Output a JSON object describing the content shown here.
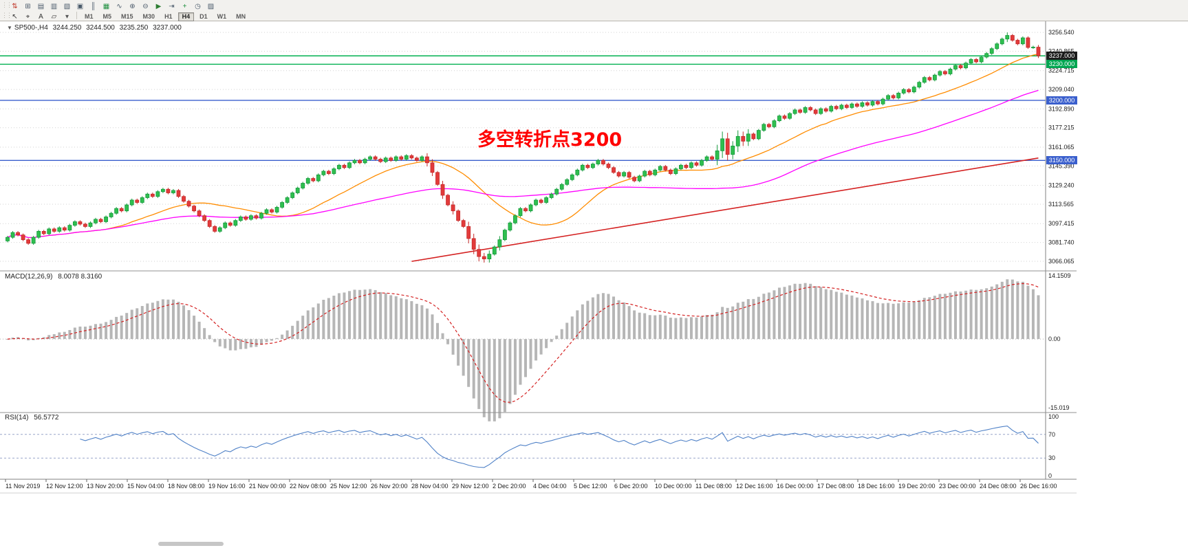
{
  "toolbar": {
    "row1_icons": [
      {
        "name": "new-order-icon",
        "glyph": "⇅",
        "color": "#c0392b"
      },
      {
        "name": "chart-window-icon",
        "glyph": "⊞",
        "color": "#4a5a6a"
      },
      {
        "name": "profiles-icon",
        "glyph": "▤",
        "color": "#4a5a6a"
      },
      {
        "name": "market-watch-icon",
        "glyph": "▥",
        "color": "#4a5a6a"
      },
      {
        "name": "navigator-icon",
        "glyph": "▧",
        "color": "#4a5a6a"
      },
      {
        "name": "terminal-icon",
        "glyph": "▣",
        "color": "#4a5a6a"
      },
      {
        "name": "bar-chart-icon",
        "glyph": "║",
        "color": "#4a5a6a"
      },
      {
        "name": "candlestick-chart-icon",
        "glyph": "▦",
        "color": "#1e8e3e"
      },
      {
        "name": "line-chart-icon",
        "glyph": "∿",
        "color": "#4a5a6a"
      },
      {
        "name": "zoom-in-icon",
        "glyph": "⊕",
        "color": "#4a5a6a"
      },
      {
        "name": "zoom-out-icon",
        "glyph": "⊖",
        "color": "#4a5a6a"
      },
      {
        "name": "auto-scroll-icon",
        "glyph": "▶",
        "color": "#2e7d32"
      },
      {
        "name": "chart-shift-icon",
        "glyph": "⇥",
        "color": "#4a5a6a"
      },
      {
        "name": "indicators-icon",
        "glyph": "+",
        "color": "#1e8e3e"
      },
      {
        "name": "periods-icon",
        "glyph": "◷",
        "color": "#4a5a6a"
      },
      {
        "name": "templates-icon",
        "glyph": "▨",
        "color": "#4a5a6a"
      }
    ],
    "row2_tools": [
      {
        "name": "cursor-icon",
        "glyph": "↖",
        "color": "#333333"
      },
      {
        "name": "crosshair-icon",
        "glyph": "⌖",
        "color": "#333333"
      },
      {
        "name": "text-label-icon",
        "glyph": "A",
        "color": "#333333"
      },
      {
        "name": "shapes-icon",
        "glyph": "▱",
        "color": "#333333"
      },
      {
        "name": "dropdown-arrow-icon",
        "glyph": "▾",
        "color": "#555555"
      }
    ],
    "timeframes": [
      "M1",
      "M5",
      "M15",
      "M30",
      "H1",
      "H4",
      "D1",
      "W1",
      "MN"
    ],
    "active_timeframe": "H4"
  },
  "chart": {
    "symbol_header": {
      "symbol": "SP500-,H4",
      "open": "3244.250",
      "high": "3244.500",
      "low": "3235.250",
      "close": "3237.000"
    },
    "annotation": {
      "text": "多空转折点3200",
      "color": "#ff0000"
    },
    "price_tags": [
      {
        "value": "3237.000",
        "price": 3237.0,
        "bg": "#1c1c1c"
      },
      {
        "value": "3230.000",
        "price": 3230.0,
        "bg": "#00a651"
      },
      {
        "value": "3200.000",
        "price": 3200.0,
        "bg": "#3a5fcd"
      },
      {
        "value": "3150.000",
        "price": 3150.0,
        "bg": "#3a5fcd"
      }
    ]
  },
  "chart_data": {
    "type": "candlestick",
    "symbol": "SP500-",
    "timeframe": "H4",
    "colors": {
      "up": "#149a3c",
      "up_fill": "#2fbf4f",
      "down": "#c62828",
      "down_fill": "#e23b3b"
    },
    "first_open": 3083,
    "closes": [
      3086,
      3090,
      3088,
      3084,
      3081,
      3086,
      3091,
      3089,
      3093,
      3091,
      3094,
      3092,
      3096,
      3099,
      3097,
      3095,
      3098,
      3101,
      3099,
      3103,
      3106,
      3110,
      3108,
      3113,
      3117,
      3115,
      3119,
      3122,
      3120,
      3124,
      3126,
      3123,
      3125,
      3120,
      3116,
      3112,
      3108,
      3104,
      3100,
      3095,
      3091,
      3094,
      3098,
      3096,
      3100,
      3103,
      3101,
      3104,
      3102,
      3106,
      3109,
      3107,
      3111,
      3115,
      3119,
      3123,
      3127,
      3131,
      3135,
      3133,
      3138,
      3141,
      3139,
      3143,
      3146,
      3144,
      3148,
      3150,
      3148,
      3151,
      3153,
      3151,
      3149,
      3152,
      3150,
      3153,
      3151,
      3154,
      3152,
      3150,
      3153,
      3148,
      3140,
      3130,
      3121,
      3113,
      3108,
      3100,
      3095,
      3085,
      3076,
      3070,
      3068,
      3072,
      3078,
      3084,
      3092,
      3098,
      3104,
      3110,
      3108,
      3113,
      3117,
      3115,
      3119,
      3122,
      3126,
      3130,
      3134,
      3138,
      3142,
      3146,
      3144,
      3147,
      3150,
      3147,
      3144,
      3140,
      3137,
      3140,
      3136,
      3133,
      3137,
      3141,
      3138,
      3142,
      3145,
      3142,
      3139,
      3143,
      3146,
      3144,
      3148,
      3146,
      3150,
      3153,
      3151,
      3158,
      3168,
      3155,
      3162,
      3170,
      3166,
      3172,
      3168,
      3175,
      3180,
      3178,
      3183,
      3187,
      3185,
      3189,
      3192,
      3190,
      3194,
      3192,
      3189,
      3193,
      3191,
      3195,
      3193,
      3196,
      3194,
      3197,
      3195,
      3198,
      3196,
      3199,
      3197,
      3201,
      3204,
      3202,
      3206,
      3209,
      3207,
      3211,
      3215,
      3219,
      3217,
      3221,
      3224,
      3222,
      3226,
      3229,
      3227,
      3231,
      3234,
      3232,
      3236,
      3239,
      3243,
      3247,
      3251,
      3254,
      3250,
      3247,
      3252,
      3244,
      3244.25,
      3237
    ],
    "wick_default": 1.2,
    "wick_overrides": {
      "81": 3,
      "82": 3,
      "84": 3,
      "86": 3,
      "89": 4,
      "90": 4,
      "91": 4,
      "92": 3,
      "93": 3,
      "95": 3,
      "137": 5,
      "138": 6,
      "139": 5,
      "140": 4,
      "141": 5,
      "142": 4,
      "143": 4,
      "193": 2.5,
      "199": 1.8
    },
    "price_axis": {
      "min": 3059.2,
      "max": 3264.6,
      "gridline_labels": [
        "3256.540",
        "3240.865",
        "3224.715",
        "3209.040",
        "3192.890",
        "3177.215",
        "3161.065",
        "3145.390",
        "3129.240",
        "3113.565",
        "3097.415",
        "3081.740",
        "3066.065"
      ]
    },
    "hlines": [
      {
        "price": 3237.0,
        "color": "#00b050",
        "width": 1.4
      },
      {
        "price": 3230.0,
        "color": "#00b050",
        "width": 1.4
      },
      {
        "price": 3200.0,
        "color": "#3a5fcd",
        "width": 1.4
      },
      {
        "price": 3150.0,
        "color": "#3a5fcd",
        "width": 1.4
      }
    ],
    "overlays": {
      "ma_fast": {
        "type": "sma",
        "period": 20,
        "color": "#ff8c00"
      },
      "ma_mid": {
        "type": "sma",
        "period": 60,
        "color": "#ff00ff"
      },
      "ma_long": {
        "type": "segment",
        "start_index": 78,
        "start_price": 3066,
        "end_index": 199,
        "end_price": 3152,
        "color": "#d42020"
      }
    },
    "x_labels": [
      "11 Nov 2019",
      "12 Nov 12:00",
      "13 Nov 20:00",
      "15 Nov 04:00",
      "18 Nov 08:00",
      "19 Nov 16:00",
      "21 Nov 00:00",
      "22 Nov 08:00",
      "25 Nov 12:00",
      "26 Nov 20:00",
      "28 Nov 04:00",
      "29 Nov 12:00",
      "2 Dec 20:00",
      "4 Dec 04:00",
      "5 Dec 12:00",
      "6 Dec 20:00",
      "10 Dec 00:00",
      "11 Dec 08:00",
      "12 Dec 16:00",
      "16 Dec 00:00",
      "17 Dec 08:00",
      "18 Dec 16:00",
      "19 Dec 20:00",
      "23 Dec 00:00",
      "24 Dec 08:00",
      "26 Dec 16:00"
    ],
    "indicators": {
      "macd": {
        "label": "MACD(12,26,9)",
        "values": "8.0078 8.3160",
        "fast": 12,
        "slow": 26,
        "signal": 9,
        "scale_max": 14.1509,
        "scale_min": -15.019,
        "scale_labels": [
          "14.1509",
          "0.00",
          "-15.019"
        ],
        "histogram_color": "#b6b6b6",
        "signal_color": "#d42020"
      },
      "rsi": {
        "label": "RSI(14)",
        "value": "56.5772",
        "period": 14,
        "levels": [
          70,
          30
        ],
        "scale_labels": [
          "100",
          "70",
          "30",
          "0"
        ],
        "line_color": "#4f81c7",
        "level_color": "#97a4c9"
      }
    }
  }
}
